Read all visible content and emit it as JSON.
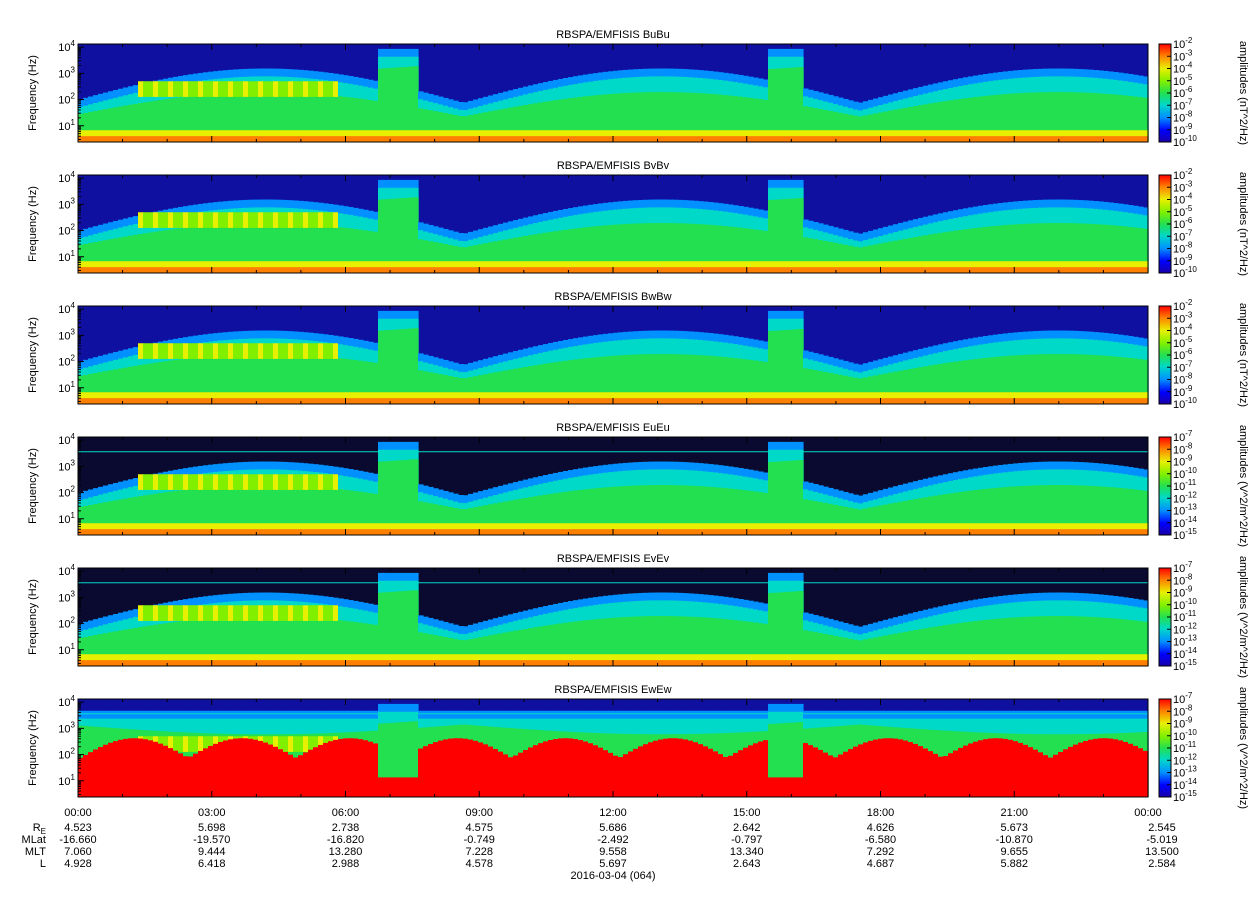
{
  "chart_data": [
    {
      "type": "heatmap",
      "title": "RBSPA/EMFISIS  BuBu",
      "ylabel": "Frequency (Hz)",
      "yscale": "log",
      "yticks": [
        {
          "base": "10",
          "exp": "1"
        },
        {
          "base": "10",
          "exp": "2"
        },
        {
          "base": "10",
          "exp": "3"
        },
        {
          "base": "10",
          "exp": "4"
        }
      ],
      "colorbar_label": "amplitudes (nT^2/Hz)",
      "colorbar_ticks": [
        {
          "base": "10",
          "exp": "-2"
        },
        {
          "base": "10",
          "exp": "-3"
        },
        {
          "base": "10",
          "exp": "-4"
        },
        {
          "base": "10",
          "exp": "-5"
        },
        {
          "base": "10",
          "exp": "-6"
        },
        {
          "base": "10",
          "exp": "-7"
        },
        {
          "base": "10",
          "exp": "-8"
        },
        {
          "base": "10",
          "exp": "-9"
        },
        {
          "base": "10",
          "exp": "-10"
        }
      ]
    },
    {
      "type": "heatmap",
      "title": "RBSPA/EMFISIS  BvBv",
      "ylabel": "Frequency (Hz)",
      "yscale": "log",
      "yticks": [
        {
          "base": "10",
          "exp": "1"
        },
        {
          "base": "10",
          "exp": "2"
        },
        {
          "base": "10",
          "exp": "3"
        },
        {
          "base": "10",
          "exp": "4"
        }
      ],
      "colorbar_label": "amplitudes (nT^2/Hz)",
      "colorbar_ticks": [
        {
          "base": "10",
          "exp": "-2"
        },
        {
          "base": "10",
          "exp": "-3"
        },
        {
          "base": "10",
          "exp": "-4"
        },
        {
          "base": "10",
          "exp": "-5"
        },
        {
          "base": "10",
          "exp": "-6"
        },
        {
          "base": "10",
          "exp": "-7"
        },
        {
          "base": "10",
          "exp": "-8"
        },
        {
          "base": "10",
          "exp": "-9"
        },
        {
          "base": "10",
          "exp": "-10"
        }
      ]
    },
    {
      "type": "heatmap",
      "title": "RBSPA/EMFISIS  BwBw",
      "ylabel": "Frequency (Hz)",
      "yscale": "log",
      "yticks": [
        {
          "base": "10",
          "exp": "1"
        },
        {
          "base": "10",
          "exp": "2"
        },
        {
          "base": "10",
          "exp": "3"
        },
        {
          "base": "10",
          "exp": "4"
        }
      ],
      "colorbar_label": "amplitudes (nT^2/Hz)",
      "colorbar_ticks": [
        {
          "base": "10",
          "exp": "-2"
        },
        {
          "base": "10",
          "exp": "-3"
        },
        {
          "base": "10",
          "exp": "-4"
        },
        {
          "base": "10",
          "exp": "-5"
        },
        {
          "base": "10",
          "exp": "-6"
        },
        {
          "base": "10",
          "exp": "-7"
        },
        {
          "base": "10",
          "exp": "-8"
        },
        {
          "base": "10",
          "exp": "-9"
        },
        {
          "base": "10",
          "exp": "-10"
        }
      ]
    },
    {
      "type": "heatmap",
      "title": "RBSPA/EMFISIS  EuEu",
      "ylabel": "Frequency (Hz)",
      "yscale": "log",
      "yticks": [
        {
          "base": "10",
          "exp": "1"
        },
        {
          "base": "10",
          "exp": "2"
        },
        {
          "base": "10",
          "exp": "3"
        },
        {
          "base": "10",
          "exp": "4"
        }
      ],
      "colorbar_label": "amplitudes (V^2/m^2/Hz)",
      "colorbar_ticks": [
        {
          "base": "10",
          "exp": "-7"
        },
        {
          "base": "10",
          "exp": "-8"
        },
        {
          "base": "10",
          "exp": "-9"
        },
        {
          "base": "10",
          "exp": "-10"
        },
        {
          "base": "10",
          "exp": "-11"
        },
        {
          "base": "10",
          "exp": "-12"
        },
        {
          "base": "10",
          "exp": "-13"
        },
        {
          "base": "10",
          "exp": "-14"
        },
        {
          "base": "10",
          "exp": "-15"
        }
      ]
    },
    {
      "type": "heatmap",
      "title": "RBSPA/EMFISIS  EvEv",
      "ylabel": "Frequency (Hz)",
      "yscale": "log",
      "yticks": [
        {
          "base": "10",
          "exp": "1"
        },
        {
          "base": "10",
          "exp": "2"
        },
        {
          "base": "10",
          "exp": "3"
        },
        {
          "base": "10",
          "exp": "4"
        }
      ],
      "colorbar_label": "amplitudes (V^2/m^2/Hz)",
      "colorbar_ticks": [
        {
          "base": "10",
          "exp": "-7"
        },
        {
          "base": "10",
          "exp": "-8"
        },
        {
          "base": "10",
          "exp": "-9"
        },
        {
          "base": "10",
          "exp": "-10"
        },
        {
          "base": "10",
          "exp": "-11"
        },
        {
          "base": "10",
          "exp": "-12"
        },
        {
          "base": "10",
          "exp": "-13"
        },
        {
          "base": "10",
          "exp": "-14"
        },
        {
          "base": "10",
          "exp": "-15"
        }
      ]
    },
    {
      "type": "heatmap",
      "title": "RBSPA/EMFISIS  EwEw",
      "ylabel": "Frequency (Hz)",
      "yscale": "log",
      "yticks": [
        {
          "base": "10",
          "exp": "1"
        },
        {
          "base": "10",
          "exp": "2"
        },
        {
          "base": "10",
          "exp": "3"
        },
        {
          "base": "10",
          "exp": "4"
        }
      ],
      "colorbar_label": "amplitudes (V^2/m^2/Hz)",
      "colorbar_ticks": [
        {
          "base": "10",
          "exp": "-7"
        },
        {
          "base": "10",
          "exp": "-8"
        },
        {
          "base": "10",
          "exp": "-9"
        },
        {
          "base": "10",
          "exp": "-10"
        },
        {
          "base": "10",
          "exp": "-11"
        },
        {
          "base": "10",
          "exp": "-12"
        },
        {
          "base": "10",
          "exp": "-13"
        },
        {
          "base": "10",
          "exp": "-14"
        },
        {
          "base": "10",
          "exp": "-15"
        }
      ]
    }
  ],
  "x_axis": {
    "tick_labels": [
      "00:00",
      "03:00",
      "06:00",
      "09:00",
      "12:00",
      "15:00",
      "18:00",
      "21:00",
      "00:00"
    ],
    "date_label": "2016-03-04 (064)"
  },
  "ephemeris": [
    {
      "label": "R",
      "sub": "E",
      "values": [
        "4.523",
        "5.698",
        "2.738",
        "4.575",
        "5.686",
        "2.642",
        "4.626",
        "5.673",
        "2.545"
      ]
    },
    {
      "label": "MLat",
      "sub": "",
      "values": [
        "-16.660",
        "-19.570",
        "-16.820",
        "-0.749",
        "-2.492",
        "-0.797",
        "-6.580",
        "-10.870",
        "-5.019"
      ]
    },
    {
      "label": "MLT",
      "sub": "",
      "values": [
        "7.060",
        "9.444",
        "13.280",
        "7.228",
        "9.558",
        "13.340",
        "7.292",
        "9.655",
        "13.500"
      ]
    },
    {
      "label": "L",
      "sub": "",
      "values": [
        "4.928",
        "6.418",
        "2.988",
        "4.578",
        "5.697",
        "2.643",
        "4.687",
        "5.882",
        "2.584"
      ]
    }
  ],
  "colors": {
    "colormap": [
      "#1a00a8",
      "#0000ff",
      "#0090ff",
      "#00d8c8",
      "#22e050",
      "#80f000",
      "#e8f000",
      "#ff8000",
      "#ff0000"
    ],
    "background_dark": "#0a1060",
    "e_field_dark": "#000000"
  }
}
